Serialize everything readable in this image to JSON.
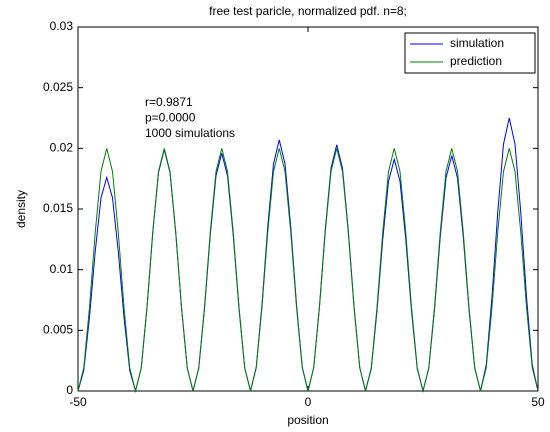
{
  "chart_data": {
    "type": "line",
    "title": "free test paricle, normalized pdf. n=8;",
    "x_label": "position",
    "y_label": "density",
    "annotations": [
      "r=0.9871",
      "p=0.0000",
      "1000 simulations"
    ],
    "legend_position": "upper right",
    "xlim": [
      -50,
      50
    ],
    "xticks": [
      -50,
      0,
      50
    ],
    "ylim": [
      0,
      0.03
    ],
    "yticks": [
      0,
      0.005,
      0.01,
      0.015,
      0.02,
      0.025,
      0.03
    ],
    "x": [
      -50,
      -48.75,
      -47.5,
      -46.25,
      -45,
      -43.75,
      -42.5,
      -41.25,
      -40,
      -38.75,
      -37.5,
      -36.25,
      -35,
      -33.75,
      -32.5,
      -31.25,
      -30,
      -28.75,
      -27.5,
      -26.25,
      -25,
      -23.75,
      -22.5,
      -21.25,
      -20,
      -18.75,
      -17.5,
      -16.25,
      -15,
      -13.75,
      -12.5,
      -11.25,
      -10,
      -8.75,
      -7.5,
      -6.25,
      -5,
      -3.75,
      -2.5,
      -1.25,
      0,
      1.25,
      2.5,
      3.75,
      5,
      6.25,
      7.5,
      8.75,
      10,
      11.25,
      12.5,
      13.75,
      15,
      16.25,
      17.5,
      18.75,
      20,
      21.25,
      22.5,
      23.75,
      25,
      26.25,
      27.5,
      28.75,
      30,
      31.25,
      32.5,
      33.75,
      35,
      36.25,
      37.5,
      38.75,
      40,
      41.25,
      42.5,
      43.75,
      45,
      46.25,
      47.5,
      48.75,
      50
    ],
    "series": [
      {
        "name": "simulation",
        "color": "#0000ff",
        "values": [
          0,
          0.00168,
          0.00608,
          0.01152,
          0.01592,
          0.0176,
          0.01592,
          0.01152,
          0.00608,
          0.00168,
          0,
          0.0019,
          0.00688,
          0.01302,
          0.018,
          0.0199,
          0.018,
          0.01302,
          0.00688,
          0.0019,
          0,
          0.00187,
          0.00677,
          0.01283,
          0.01773,
          0.0196,
          0.01773,
          0.01283,
          0.00677,
          0.00187,
          0,
          0.00198,
          0.00715,
          0.01355,
          0.01872,
          0.0207,
          0.01872,
          0.01355,
          0.00715,
          0.00198,
          0,
          0.00194,
          0.00701,
          0.01329,
          0.01836,
          0.0203,
          0.01836,
          0.01329,
          0.00701,
          0.00194,
          0,
          0.00182,
          0.0066,
          0.0125,
          0.01728,
          0.0191,
          0.01728,
          0.0125,
          0.0066,
          0.00182,
          0,
          0.00185,
          0.0067,
          0.0127,
          0.01755,
          0.0194,
          0.01755,
          0.0127,
          0.0067,
          0.00185,
          0,
          0.00215,
          0.00777,
          0.01473,
          0.02035,
          0.0225,
          0.02035,
          0.01473,
          0.00777,
          0.00215,
          0
        ]
      },
      {
        "name": "prediction",
        "color": "#008000",
        "values": [
          0,
          0.00191,
          0.00691,
          0.01309,
          0.01809,
          0.02,
          0.01809,
          0.01309,
          0.00691,
          0.00191,
          0,
          0.00191,
          0.00691,
          0.01309,
          0.01809,
          0.02,
          0.01809,
          0.01309,
          0.00691,
          0.00191,
          0,
          0.00191,
          0.00691,
          0.01309,
          0.01809,
          0.02,
          0.01809,
          0.01309,
          0.00691,
          0.00191,
          0,
          0.00191,
          0.00691,
          0.01309,
          0.01809,
          0.02,
          0.01809,
          0.01309,
          0.00691,
          0.00191,
          0,
          0.00191,
          0.00691,
          0.01309,
          0.01809,
          0.02,
          0.01809,
          0.01309,
          0.00691,
          0.00191,
          0,
          0.00191,
          0.00691,
          0.01309,
          0.01809,
          0.02,
          0.01809,
          0.01309,
          0.00691,
          0.00191,
          0,
          0.00191,
          0.00691,
          0.01309,
          0.01809,
          0.02,
          0.01809,
          0.01309,
          0.00691,
          0.00191,
          0,
          0.00191,
          0.00691,
          0.01309,
          0.01809,
          0.02,
          0.01809,
          0.01309,
          0.00691,
          0.00191,
          0
        ]
      }
    ]
  }
}
